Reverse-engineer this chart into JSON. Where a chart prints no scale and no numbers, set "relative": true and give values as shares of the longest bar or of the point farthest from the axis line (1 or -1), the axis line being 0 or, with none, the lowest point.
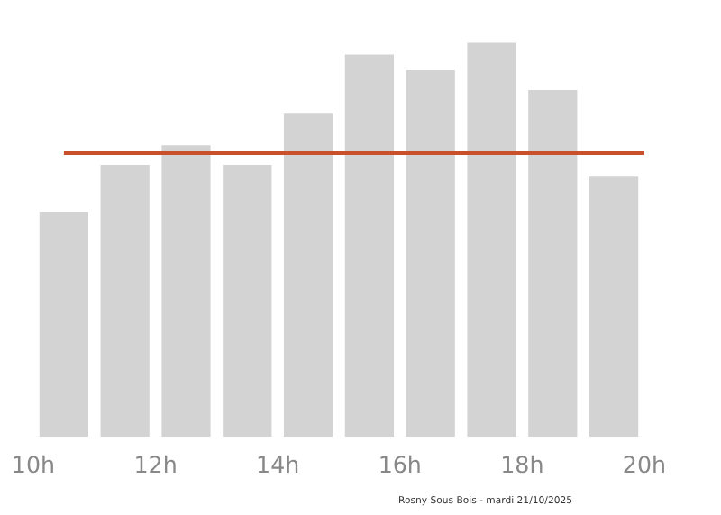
{
  "chart_data": {
    "type": "bar",
    "relative": true,
    "x": [
      10.5,
      11.5,
      12.5,
      13.5,
      14.5,
      15.5,
      16.5,
      17.5,
      18.5,
      19.5
    ],
    "values": [
      0.57,
      0.69,
      0.74,
      0.69,
      0.82,
      0.97,
      0.93,
      1,
      0.88,
      0.66
    ],
    "color": "#d3d3d3",
    "xlim": [
      10,
      20
    ],
    "xticks": [
      {
        "value": 10,
        "label": "10h"
      },
      {
        "value": 12,
        "label": "12h"
      },
      {
        "value": 14,
        "label": "14h"
      },
      {
        "value": 16,
        "label": "16h"
      },
      {
        "value": 18,
        "label": "18h"
      },
      {
        "value": 20,
        "label": "20h"
      }
    ],
    "ref_lines": [
      {
        "axis": "y",
        "value": 0.72,
        "label": null,
        "color": "#c8502a"
      }
    ],
    "annotations": [
      "Rosny Sous Bois - mardi 21/10/2025"
    ],
    "grid": false
  }
}
